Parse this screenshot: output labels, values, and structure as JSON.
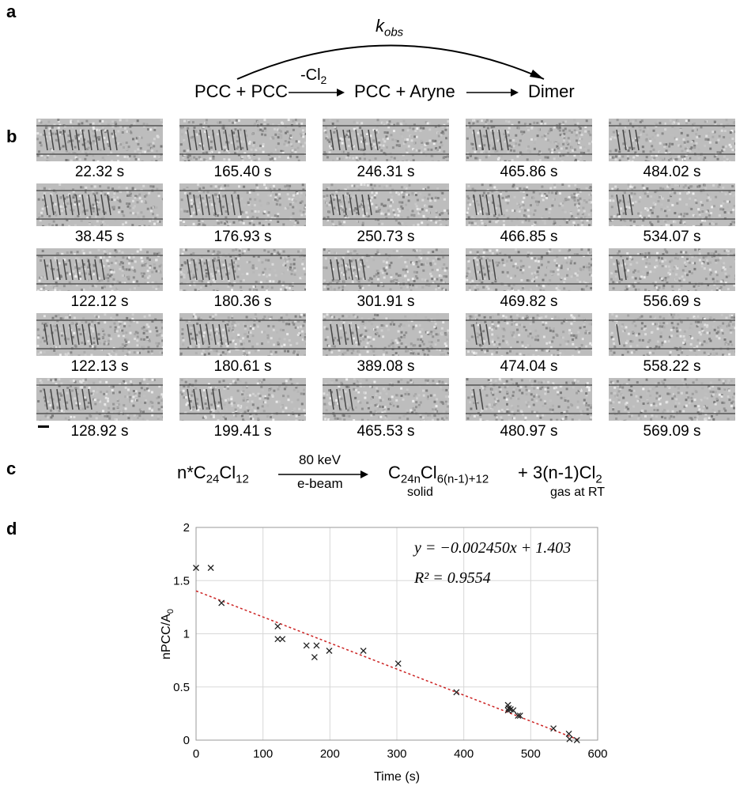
{
  "panel_labels": {
    "a": "a",
    "b": "b",
    "c": "c",
    "d": "d"
  },
  "scheme": {
    "k_obs": "k",
    "k_obs_sub": "obs",
    "species1": "PCC + PCC",
    "arrow1_label": "-Cl",
    "arrow1_label_sub": "2",
    "species2": "PCC + Aryne",
    "species3": "Dimer"
  },
  "frames": [
    [
      "22.32 s",
      "165.40 s",
      "246.31 s",
      "465.86 s",
      "484.02 s"
    ],
    [
      "38.45 s",
      "176.93 s",
      "250.73 s",
      "466.85 s",
      "534.07 s"
    ],
    [
      "122.12 s",
      "180.36 s",
      "301.91 s",
      "469.82 s",
      "556.69 s"
    ],
    [
      "122.13 s",
      "180.61 s",
      "389.08 s",
      "474.04 s",
      "558.22 s"
    ],
    [
      "128.92 s",
      "199.41 s",
      "465.53 s",
      "480.97 s",
      "569.09 s"
    ]
  ],
  "reaction": {
    "lhs_prefix": "n*C",
    "lhs_sub1": "24",
    "lhs_mid": "Cl",
    "lhs_sub2": "12",
    "arrow_top": "80 keV",
    "arrow_bottom": "e-beam",
    "prod1": "C",
    "prod1_sub1": "24n",
    "prod1_mid": "Cl",
    "prod1_sub2": "6(n-1)+12",
    "prod1_note": "solid",
    "plus": "+ 3(n-1)Cl",
    "prod2_sub": "2",
    "prod2_note": "gas at RT"
  },
  "chart_data": {
    "type": "scatter",
    "xlabel": "Time (s)",
    "ylabel": "nPCC/A",
    "ylabel_sub": "0",
    "xlim": [
      0,
      600
    ],
    "ylim": [
      0,
      2
    ],
    "xticks": [
      0,
      100,
      200,
      300,
      400,
      500,
      600
    ],
    "yticks": [
      0,
      0.5,
      1,
      1.5,
      2
    ],
    "xtick_labels": [
      "0",
      "100",
      "200",
      "300",
      "400",
      "500",
      "600"
    ],
    "ytick_labels": [
      "0",
      "0.5",
      "1",
      "1.5",
      "2"
    ],
    "grid": true,
    "fit_equation": "y = −0.002450x + 1.403",
    "fit_r2": "R² = 0.9554",
    "fit": {
      "slope": -0.00245,
      "intercept": 1.403,
      "x_range": [
        0,
        570
      ]
    },
    "points": [
      [
        0,
        1.62
      ],
      [
        22,
        1.62
      ],
      [
        38,
        1.29
      ],
      [
        122,
        1.07
      ],
      [
        122,
        0.95
      ],
      [
        129,
        0.95
      ],
      [
        165,
        0.89
      ],
      [
        177,
        0.78
      ],
      [
        180,
        0.89
      ],
      [
        199,
        0.84
      ],
      [
        250,
        0.84
      ],
      [
        302,
        0.72
      ],
      [
        389,
        0.45
      ],
      [
        466,
        0.33
      ],
      [
        466,
        0.28
      ],
      [
        467,
        0.3
      ],
      [
        470,
        0.29
      ],
      [
        474,
        0.28
      ],
      [
        481,
        0.23
      ],
      [
        484,
        0.23
      ],
      [
        534,
        0.11
      ],
      [
        557,
        0.06
      ],
      [
        558,
        0.01
      ],
      [
        569,
        0.0
      ]
    ],
    "colors": {
      "fit_line": "#cc2222",
      "markers": "#222222",
      "grid": "#d8d8d8"
    }
  }
}
